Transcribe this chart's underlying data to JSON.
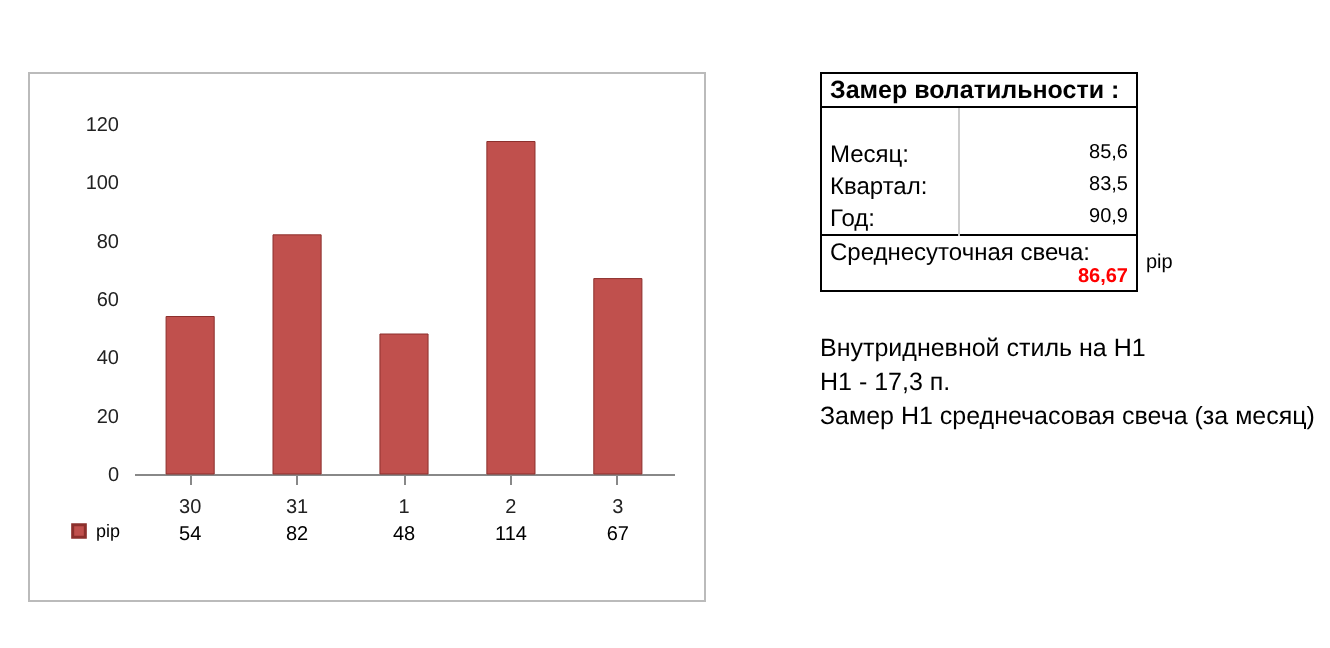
{
  "chart_data": {
    "type": "bar",
    "categories": [
      "30",
      "31",
      "1",
      "2",
      "3"
    ],
    "series": [
      {
        "name": "pip",
        "color": "#c0504d",
        "values": [
          54,
          82,
          48,
          114,
          67
        ]
      }
    ],
    "ylim": [
      0,
      120
    ],
    "yticks": [
      0,
      20,
      40,
      60,
      80,
      100,
      120
    ],
    "grid": false,
    "data_labels": true,
    "legend": "bottom left",
    "annotations": [
      "Замер  волатильности  :",
      "Месяц:",
      "85,6",
      "Квартал:",
      "83,5",
      "Год:",
      "90,9",
      "Среднесуточная свеча:",
      "86,67",
      "pip",
      "Внутридневной стиль на H1",
      "H1 - 17,3 п.",
      "Замер H1 среднечасовая свеча (за месяц)"
    ]
  }
}
